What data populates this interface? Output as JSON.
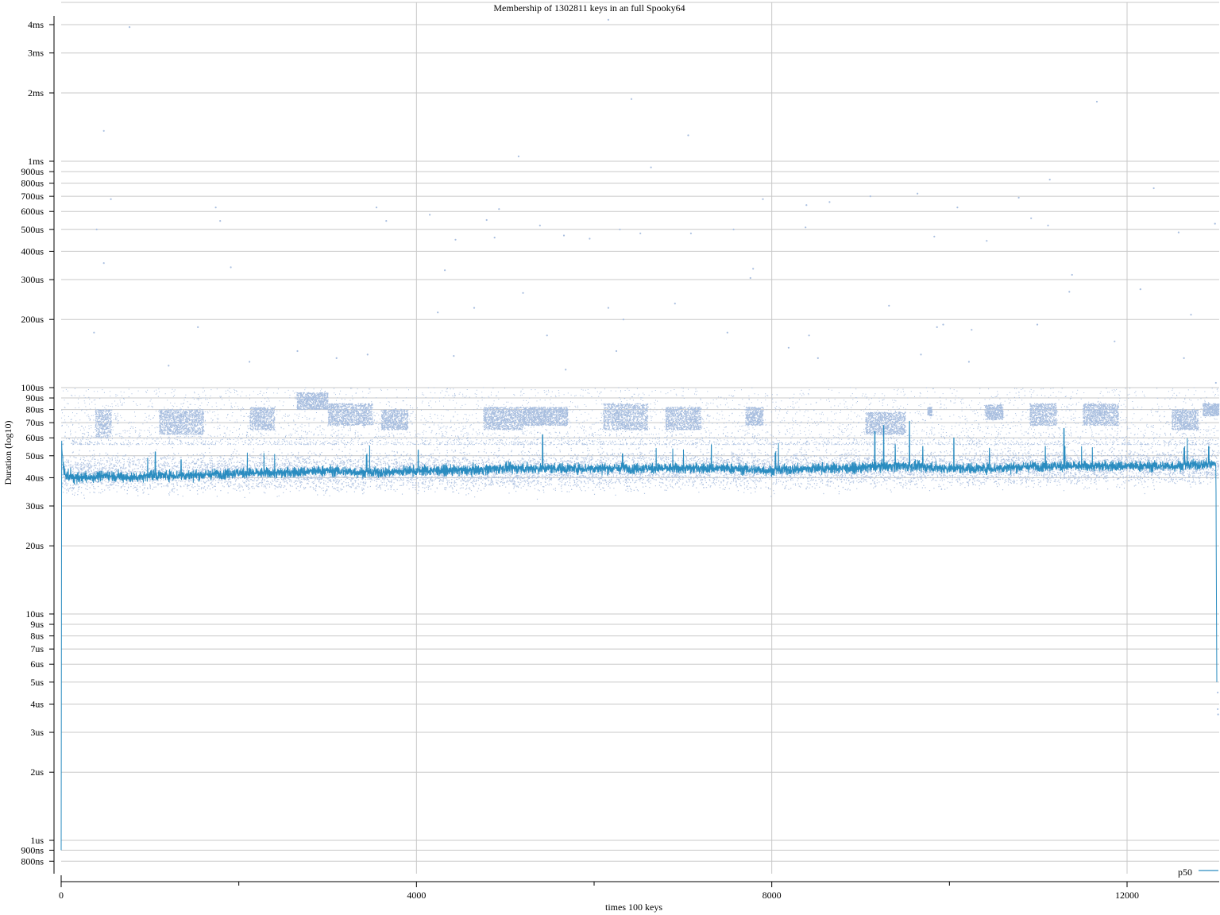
{
  "chart_data": {
    "type": "scatter",
    "title": "Membership of 1302811 keys in an full Spooky64",
    "xlabel": "times 100 keys",
    "ylabel": "Duration (log10)",
    "y_scale": "log",
    "xlim": [
      0,
      13030
    ],
    "ylim_us": [
      0.7,
      4300
    ],
    "x_ticks": [
      {
        "value": 0,
        "label": "0"
      },
      {
        "value": 4000,
        "label": "4000"
      },
      {
        "value": 8000,
        "label": "8000"
      },
      {
        "value": 12000,
        "label": "12000"
      }
    ],
    "x_minor_ticks": [
      2000,
      6000,
      10000
    ],
    "y_ticks": [
      {
        "value_us": 0.8,
        "label": "800ns"
      },
      {
        "value_us": 0.9,
        "label": "900ns"
      },
      {
        "value_us": 1,
        "label": "1us"
      },
      {
        "value_us": 2,
        "label": "2us"
      },
      {
        "value_us": 3,
        "label": "3us"
      },
      {
        "value_us": 4,
        "label": "4us"
      },
      {
        "value_us": 5,
        "label": "5us"
      },
      {
        "value_us": 6,
        "label": "6us"
      },
      {
        "value_us": 7,
        "label": "7us"
      },
      {
        "value_us": 8,
        "label": "8us"
      },
      {
        "value_us": 9,
        "label": "9us"
      },
      {
        "value_us": 10,
        "label": "10us"
      },
      {
        "value_us": 20,
        "label": "20us"
      },
      {
        "value_us": 30,
        "label": "30us"
      },
      {
        "value_us": 40,
        "label": "40us"
      },
      {
        "value_us": 50,
        "label": "50us"
      },
      {
        "value_us": 60,
        "label": "60us"
      },
      {
        "value_us": 70,
        "label": "70us"
      },
      {
        "value_us": 80,
        "label": "80us"
      },
      {
        "value_us": 90,
        "label": "90us"
      },
      {
        "value_us": 100,
        "label": "100us"
      },
      {
        "value_us": 200,
        "label": "200us"
      },
      {
        "value_us": 300,
        "label": "300us"
      },
      {
        "value_us": 400,
        "label": "400us"
      },
      {
        "value_us": 500,
        "label": "500us"
      },
      {
        "value_us": 600,
        "label": "600us"
      },
      {
        "value_us": 700,
        "label": "700us"
      },
      {
        "value_us": 800,
        "label": "800us"
      },
      {
        "value_us": 900,
        "label": "900us"
      },
      {
        "value_us": 1000,
        "label": "1ms"
      },
      {
        "value_us": 2000,
        "label": "2ms"
      },
      {
        "value_us": 3000,
        "label": "3ms"
      },
      {
        "value_us": 4000,
        "label": "4ms"
      }
    ],
    "grid": true,
    "legend": {
      "position": "bottom-right"
    },
    "series": [
      {
        "name": "p50",
        "kind": "line",
        "color": "#2a8cc0",
        "points": [
          [
            0,
            0.9
          ],
          [
            5,
            56
          ],
          [
            30,
            42
          ],
          [
            100,
            40
          ],
          [
            300,
            40
          ],
          [
            500,
            41
          ],
          [
            800,
            40
          ],
          [
            1000,
            41
          ],
          [
            1500,
            41
          ],
          [
            2000,
            42
          ],
          [
            2500,
            42
          ],
          [
            3000,
            43
          ],
          [
            3500,
            42
          ],
          [
            4000,
            43
          ],
          [
            4500,
            43
          ],
          [
            5000,
            44
          ],
          [
            5400,
            44
          ],
          [
            6000,
            44
          ],
          [
            6500,
            44
          ],
          [
            7000,
            44
          ],
          [
            7500,
            44
          ],
          [
            8000,
            43
          ],
          [
            8500,
            44
          ],
          [
            9000,
            44
          ],
          [
            9200,
            45
          ],
          [
            9500,
            45
          ],
          [
            10000,
            44
          ],
          [
            10500,
            44
          ],
          [
            11000,
            45
          ],
          [
            11500,
            45
          ],
          [
            12000,
            45
          ],
          [
            12500,
            45
          ],
          [
            13000,
            46
          ],
          [
            13010,
            5
          ]
        ],
        "spikes": [
          [
            5,
            58
          ],
          [
            1060,
            52
          ],
          [
            1350,
            48
          ],
          [
            4020,
            53
          ],
          [
            5420,
            62
          ],
          [
            6320,
            51
          ],
          [
            7320,
            56
          ],
          [
            9160,
            64
          ],
          [
            9260,
            68
          ],
          [
            9390,
            56
          ],
          [
            9550,
            71
          ],
          [
            9700,
            55
          ],
          [
            10050,
            60
          ],
          [
            10450,
            54
          ],
          [
            11080,
            55
          ],
          [
            11290,
            66
          ],
          [
            12920,
            55
          ]
        ]
      },
      {
        "name": "",
        "kind": "scatter",
        "color": "#a8bedf",
        "dense_band_us": {
          "low": 30,
          "high": 58
        },
        "clusters": [
          {
            "x": [
              380,
              560
            ],
            "y_us": [
              60,
              80
            ]
          },
          {
            "x": [
              1100,
              1600
            ],
            "y_us": [
              62,
              80
            ]
          },
          {
            "x": [
              2120,
              2400
            ],
            "y_us": [
              65,
              82
            ]
          },
          {
            "x": [
              2650,
              3000
            ],
            "y_us": [
              80,
              95
            ]
          },
          {
            "x": [
              3000,
              3500
            ],
            "y_us": [
              68,
              85
            ]
          },
          {
            "x": [
              3600,
              3900
            ],
            "y_us": [
              65,
              80
            ]
          },
          {
            "x": [
              4750,
              5200
            ],
            "y_us": [
              65,
              82
            ]
          },
          {
            "x": [
              5200,
              5700
            ],
            "y_us": [
              68,
              82
            ]
          },
          {
            "x": [
              6100,
              6600
            ],
            "y_us": [
              65,
              85
            ]
          },
          {
            "x": [
              6800,
              7200
            ],
            "y_us": [
              65,
              82
            ]
          },
          {
            "x": [
              7700,
              7900
            ],
            "y_us": [
              68,
              82
            ]
          },
          {
            "x": [
              9050,
              9500
            ],
            "y_us": [
              62,
              78
            ]
          },
          {
            "x": [
              9750,
              9800
            ],
            "y_us": [
              75,
              82
            ]
          },
          {
            "x": [
              10400,
              10600
            ],
            "y_us": [
              72,
              84
            ]
          },
          {
            "x": [
              10900,
              11200
            ],
            "y_us": [
              68,
              85
            ]
          },
          {
            "x": [
              11500,
              11900
            ],
            "y_us": [
              68,
              85
            ]
          },
          {
            "x": [
              12500,
              12800
            ],
            "y_us": [
              65,
              80
            ]
          },
          {
            "x": [
              12850,
              13030
            ],
            "y_us": [
              75,
              85
            ]
          }
        ],
        "outliers": [
          [
            770,
            3900
          ],
          [
            6160,
            4200
          ],
          [
            480,
            1360
          ],
          [
            6420,
            1880
          ],
          [
            7060,
            1300
          ],
          [
            11660,
            1830
          ],
          [
            5150,
            1050
          ],
          [
            6640,
            940
          ],
          [
            11130,
            830
          ],
          [
            12300,
            760
          ],
          [
            560,
            680
          ],
          [
            9640,
            720
          ],
          [
            9110,
            700
          ],
          [
            8650,
            660
          ],
          [
            1740,
            625
          ],
          [
            3550,
            625
          ],
          [
            4930,
            615
          ],
          [
            10090,
            625
          ],
          [
            10780,
            690
          ],
          [
            400,
            500
          ],
          [
            1790,
            545
          ],
          [
            3660,
            545
          ],
          [
            4150,
            580
          ],
          [
            4790,
            550
          ],
          [
            5390,
            520
          ],
          [
            7900,
            680
          ],
          [
            8380,
            510
          ],
          [
            7090,
            480
          ],
          [
            7570,
            500
          ],
          [
            8390,
            640
          ],
          [
            6290,
            500
          ],
          [
            5660,
            470
          ],
          [
            5950,
            455
          ],
          [
            4440,
            450
          ],
          [
            4880,
            460
          ],
          [
            6520,
            480
          ],
          [
            9830,
            465
          ],
          [
            10420,
            445
          ],
          [
            10920,
            560
          ],
          [
            11110,
            520
          ],
          [
            12580,
            485
          ],
          [
            12990,
            530
          ],
          [
            480,
            355
          ],
          [
            1910,
            340
          ],
          [
            4320,
            330
          ],
          [
            7790,
            335
          ],
          [
            7760,
            305
          ],
          [
            11380,
            315
          ],
          [
            11350,
            265
          ],
          [
            5200,
            262
          ],
          [
            12150,
            272
          ],
          [
            4240,
            215
          ],
          [
            4650,
            225
          ],
          [
            6160,
            225
          ],
          [
            6910,
            235
          ],
          [
            9320,
            230
          ],
          [
            12720,
            210
          ],
          [
            370,
            175
          ],
          [
            1540,
            185
          ],
          [
            9860,
            185
          ],
          [
            10250,
            180
          ],
          [
            10990,
            190
          ],
          [
            11860,
            160
          ],
          [
            9930,
            190
          ],
          [
            4420,
            138
          ],
          [
            5470,
            170
          ],
          [
            6330,
            200
          ],
          [
            7500,
            175
          ],
          [
            8420,
            170
          ],
          [
            1210,
            125
          ],
          [
            2120,
            130
          ],
          [
            2660,
            145
          ],
          [
            3100,
            135
          ],
          [
            3450,
            140
          ],
          [
            5680,
            120
          ],
          [
            6250,
            145
          ],
          [
            8190,
            150
          ],
          [
            8520,
            135
          ],
          [
            9680,
            140
          ],
          [
            10220,
            130
          ],
          [
            12640,
            135
          ],
          [
            13000,
            105
          ],
          [
            13020,
            4.5
          ],
          [
            13020,
            3.8
          ],
          [
            13025,
            3.6
          ]
        ]
      }
    ]
  }
}
